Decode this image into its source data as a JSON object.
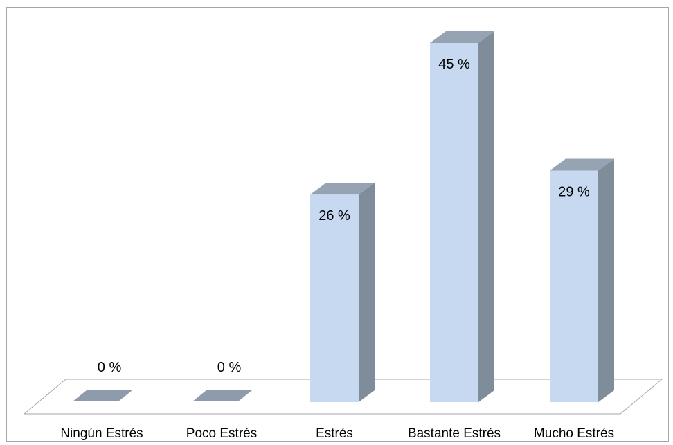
{
  "chart_data": {
    "type": "bar",
    "style": "3d-column",
    "title": "",
    "xlabel": "",
    "ylabel": "",
    "categories": [
      "Ningún Estrés",
      "Poco Estrés",
      "Estrés",
      "Bastante Estrés",
      "Mucho Estrés"
    ],
    "values": [
      0,
      0,
      26,
      45,
      29
    ],
    "data_labels": [
      "0 %",
      "0 %",
      "26 %",
      "45 %",
      "29 %"
    ],
    "ylim": [
      0,
      45
    ],
    "grid": false,
    "legend": "none",
    "colors": {
      "bar_front": "#c6d9f1",
      "bar_side": "#7f8c99",
      "bar_top": "#95a3b3",
      "zero_marker": "#8d9bac",
      "floor_line": "#a6a6a6",
      "frame": "#a6a6a6"
    }
  }
}
